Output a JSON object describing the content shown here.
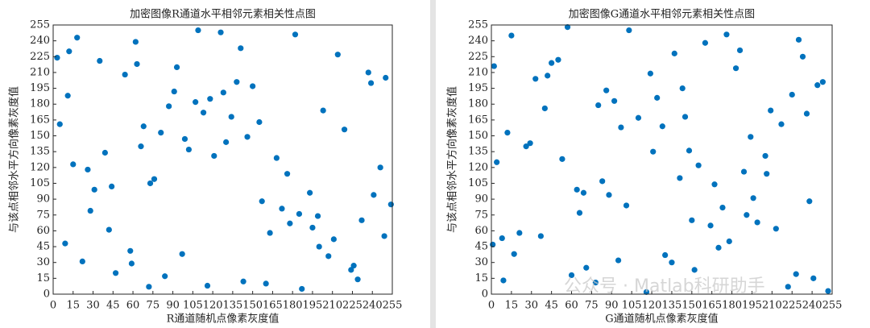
{
  "chart_data": [
    {
      "type": "scatter",
      "title": "加密图像R通道水平相邻元素相关性点图",
      "xlabel": "R通道随机点像素灰度值",
      "ylabel": "与该点相邻水平方向像素灰度值",
      "color": "#0072bd",
      "xlim": [
        0,
        255
      ],
      "ylim": [
        0,
        255
      ],
      "xticks": [
        0,
        15,
        30,
        45,
        60,
        75,
        90,
        105,
        120,
        135,
        150,
        165,
        180,
        195,
        210,
        225,
        240,
        255
      ],
      "yticks": [
        0,
        15,
        30,
        45,
        60,
        75,
        90,
        105,
        120,
        135,
        150,
        165,
        180,
        195,
        210,
        225,
        240,
        255
      ],
      "x": [
        12,
        200,
        87,
        143,
        31,
        250,
        66,
        178,
        109,
        224,
        5,
        157,
        93,
        39,
        211,
        128,
        72,
        246,
        18,
        185,
        134,
        59,
        99,
        237,
        163,
        44,
        118,
        207,
        3,
        172,
        81,
        229,
        150,
        26,
        195,
        62,
        241,
        113,
        47,
        168,
        138,
        9,
        219,
        76,
        187,
        35,
        254,
        102,
        126,
        58,
        203,
        15,
        160,
        91,
        232,
        68,
        141,
        22,
        176,
        107,
        249,
        54,
        193,
        130,
        84,
        214,
        28,
        155,
        97,
        239,
        121,
        42,
        182,
        73,
        226,
        11,
        146,
        199,
        63,
        116
      ],
      "y": [
        230,
        45,
        178,
        12,
        99,
        205,
        140,
        67,
        250,
        23,
        161,
        88,
        215,
        134,
        52,
        191,
        7,
        120,
        243,
        76,
        168,
        29,
        147,
        210,
        58,
        102,
        185,
        36,
        224,
        81,
        153,
        14,
        197,
        118,
        63,
        239,
        94,
        172,
        20,
        129,
        201,
        48,
        156,
        109,
        5,
        221,
        85,
        137,
        248,
        41,
        174,
        123,
        10,
        192,
        70,
        159,
        233,
        31,
        114,
        182,
        55,
        208,
        96,
        144,
        17,
        227,
        79,
        163,
        38,
        200,
        131,
        61,
        246,
        105,
        27,
        188,
        149,
        74,
        218,
        8
      ]
    },
    {
      "type": "scatter",
      "title": "加密图像G通道水平相邻元素相关性点图",
      "xlabel": "G通道随机点像素灰度值",
      "ylabel": "与该点相邻水平方向像素灰度值",
      "color": "#0072bd",
      "xlim": [
        0,
        255
      ],
      "ylim": [
        0,
        255
      ],
      "xticks": [
        0,
        15,
        30,
        45,
        60,
        75,
        90,
        105,
        120,
        135,
        150,
        165,
        180,
        195,
        210,
        225,
        240,
        255
      ],
      "yticks": [
        0,
        15,
        30,
        45,
        60,
        75,
        90,
        105,
        120,
        135,
        150,
        165,
        180,
        195,
        210,
        225,
        240,
        255
      ],
      "x": [
        241,
        33,
        150,
        92,
        205,
        17,
        176,
        64,
        128,
        222,
        50,
        189,
        8,
        143,
        101,
        236,
        71,
        160,
        26,
        213,
        119,
        83,
        252,
        40,
        170,
        137,
        4,
        196,
        57,
        228,
        110,
        21,
        183,
        148,
        66,
        244,
        95,
        12,
        167,
        230,
        78,
        124,
        199,
        45,
        155,
        1,
        217,
        88,
        135,
        248,
        29,
        173,
        103,
        60,
        209,
        141,
        37,
        186,
        116,
        225,
        53,
        164,
        2,
        194,
        130,
        80,
        238,
        15,
        152,
        97,
        206,
        42,
        178,
        121,
        69,
        233,
        9,
        145,
        191,
        86
      ],
      "y": [
        15,
        204,
        70,
        183,
        131,
        38,
        246,
        99,
        159,
        7,
        222,
        116,
        53,
        195,
        84,
        171,
        25,
        238,
        140,
        62,
        209,
        107,
        3,
        176,
        44,
        228,
        125,
        91,
        253,
        19,
        167,
        58,
        214,
        136,
        77,
        198,
        32,
        153,
        104,
        241,
        11,
        186,
        68,
        219,
        122,
        47,
        161,
        94,
        30,
        201,
        143,
        82,
        250,
        18,
        174,
        110,
        55,
        231,
        2,
        189,
        128,
        65,
        216,
        149,
        37,
        179,
        88,
        245,
        23,
        158,
        114,
        207,
        50,
        135,
        96,
        225,
        13,
        168,
        75,
        193
      ]
    }
  ],
  "watermark": "公众号 · Matlab科研助手"
}
